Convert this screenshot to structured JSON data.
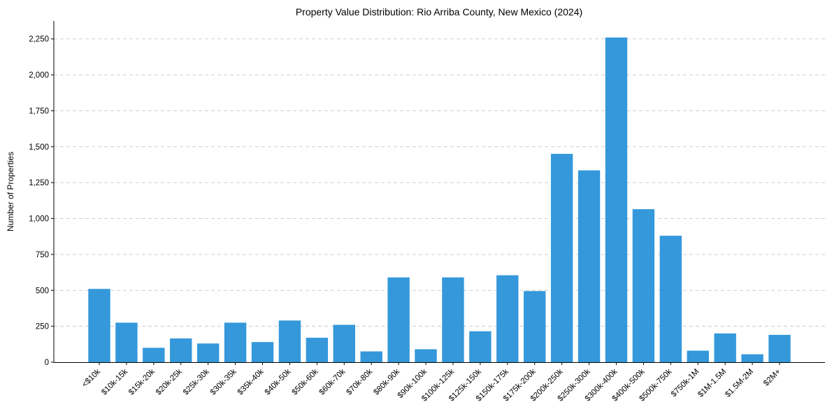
{
  "chart_data": {
    "type": "bar",
    "title": "Property Value Distribution: Rio Arriba County, New Mexico (2024)",
    "xlabel": "",
    "ylabel": "Number of Properties",
    "ylim": [
      0,
      2375
    ],
    "yticks": [
      0,
      250,
      500,
      750,
      1000,
      1250,
      1500,
      1750,
      2000,
      2250
    ],
    "ytick_labels": [
      "0",
      "250",
      "500",
      "750",
      "1,000",
      "1,250",
      "1,500",
      "1,750",
      "2,000",
      "2,250"
    ],
    "grid": "y-dashed",
    "bar_color": "#3498db",
    "categories": [
      "<$10k",
      "$10k-15k",
      "$15k-20k",
      "$20k-25k",
      "$25k-30k",
      "$30k-35k",
      "$35k-40k",
      "$40k-50k",
      "$50k-60k",
      "$60k-70k",
      "$70k-80k",
      "$80k-90k",
      "$90k-100k",
      "$100k-125k",
      "$125k-150k",
      "$150k-175k",
      "$175k-200k",
      "$200k-250k",
      "$250k-300k",
      "$300k-400k",
      "$400k-500k",
      "$500k-750k",
      "$750k-1M",
      "$1M-1.5M",
      "$1.5M-2M",
      "$2M+"
    ],
    "values": [
      510,
      275,
      100,
      165,
      130,
      275,
      140,
      290,
      170,
      260,
      75,
      590,
      90,
      590,
      215,
      605,
      495,
      1450,
      1335,
      2260,
      1065,
      880,
      80,
      200,
      55,
      190
    ]
  }
}
